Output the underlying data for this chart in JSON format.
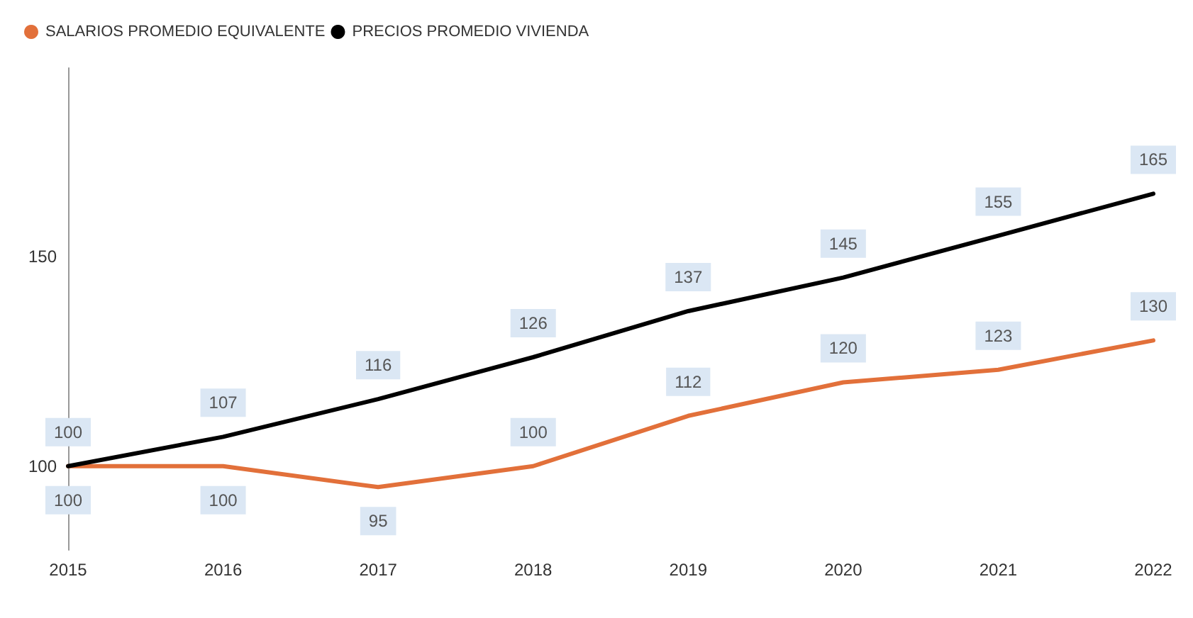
{
  "chart_data": {
    "type": "line",
    "categories": [
      "2015",
      "2016",
      "2017",
      "2018",
      "2019",
      "2020",
      "2021",
      "2022"
    ],
    "series": [
      {
        "name": "SALARIOS PROMEDIO EQUIVALENTE",
        "color": "#e2703a",
        "values": [
          100,
          100,
          95,
          100,
          112,
          120,
          123,
          130
        ]
      },
      {
        "name": "PRECIOS PROMEDIO VIVIENDA",
        "color": "#000000",
        "values": [
          100,
          107,
          116,
          126,
          137,
          145,
          155,
          165
        ]
      }
    ],
    "ylim": [
      80,
      195
    ],
    "yticks": [
      100,
      150
    ],
    "grid": false,
    "legend": "top left",
    "marker": "none",
    "line_style": "solid",
    "data_labels": true
  }
}
